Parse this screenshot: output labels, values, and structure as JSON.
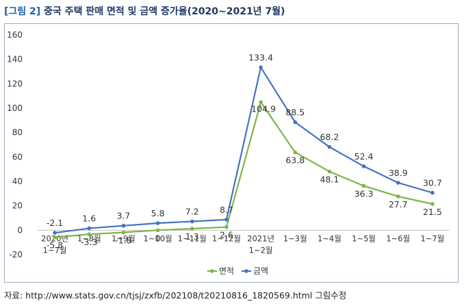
{
  "figure": {
    "label": "[그림 2]",
    "title": "중국 주택 판매 면적 및 금액 증가율(2020~2021년 7월)"
  },
  "source": "자료: http://www.stats.gov.cn/tjsj/zxfb/202108/t20210816_1820569.html 그림수정",
  "chart_data": {
    "type": "line",
    "categories": [
      "2020년\n1~7월",
      "1~8월",
      "1~9월",
      "1~10월",
      "1~11월",
      "1~12월",
      "2021년\n1~2월",
      "1~3월",
      "1~4월",
      "1~5월",
      "1~6월",
      "1~7월"
    ],
    "series": [
      {
        "name": "면적",
        "color": "#7ab648",
        "values": [
          -5.8,
          -3.3,
          -1.8,
          0,
          1.3,
          2.6,
          104.9,
          63.8,
          48.1,
          36.3,
          27.7,
          21.5
        ],
        "labels": [
          "-5.8",
          "-3.3",
          "-1.8",
          "0",
          "1.3",
          "2.6",
          "104.9",
          "63.8",
          "48.1",
          "36.3",
          "27.7",
          "21.5"
        ]
      },
      {
        "name": "금액",
        "color": "#4472c4",
        "values": [
          -2.1,
          1.6,
          3.7,
          5.8,
          7.2,
          8.7,
          133.4,
          88.5,
          68.2,
          52.4,
          38.9,
          30.7
        ],
        "labels": [
          "-2.1",
          "1.6",
          "3.7",
          "5.8",
          "7.2",
          "8.7",
          "133.4",
          "88.5",
          "68.2",
          "52.4",
          "38.9",
          "30.7"
        ]
      }
    ],
    "yticks": [
      "160",
      "140",
      "120",
      "100",
      "80",
      "60",
      "40",
      "20",
      "0",
      "-20"
    ],
    "ylim": [
      -20,
      160
    ],
    "grid": false,
    "legend": "bottom",
    "axis_color": "#bfbfbf"
  }
}
